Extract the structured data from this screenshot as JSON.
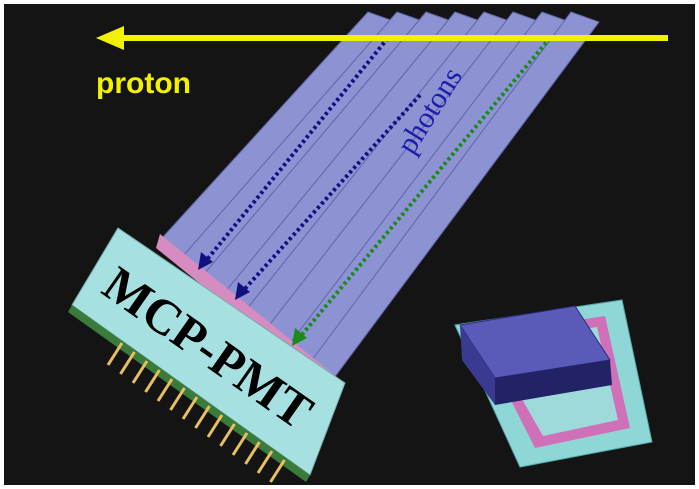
{
  "labels": {
    "proton": "proton",
    "photons": "photons",
    "sensor": "MCP-PMT"
  }
}
